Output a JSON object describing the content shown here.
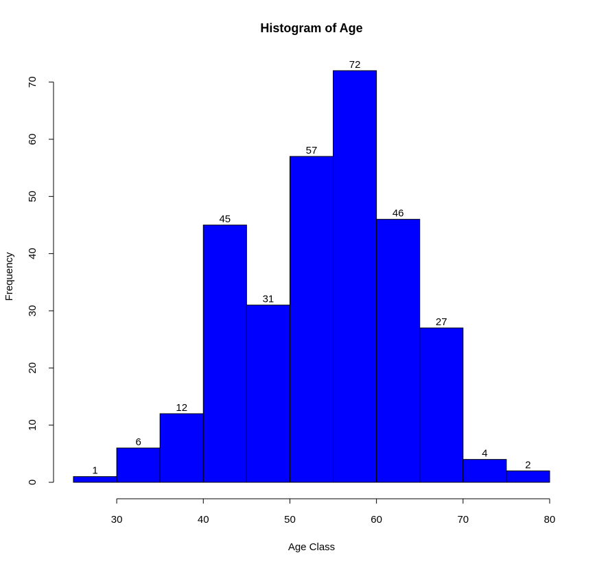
{
  "chart_data": {
    "type": "bar",
    "title": "Histogram of Age",
    "xlabel": "Age Class",
    "ylabel": "Frequency",
    "bins": [
      {
        "from": 25,
        "to": 30,
        "value": 1
      },
      {
        "from": 30,
        "to": 35,
        "value": 6
      },
      {
        "from": 35,
        "to": 40,
        "value": 12
      },
      {
        "from": 40,
        "to": 45,
        "value": 45
      },
      {
        "from": 45,
        "to": 50,
        "value": 31
      },
      {
        "from": 50,
        "to": 55,
        "value": 57
      },
      {
        "from": 55,
        "to": 60,
        "value": 72
      },
      {
        "from": 60,
        "to": 65,
        "value": 46
      },
      {
        "from": 65,
        "to": 70,
        "value": 27
      },
      {
        "from": 70,
        "to": 75,
        "value": 4
      },
      {
        "from": 75,
        "to": 80,
        "value": 2
      }
    ],
    "xticks": [
      30,
      40,
      50,
      60,
      70,
      80
    ],
    "yticks": [
      0,
      10,
      20,
      30,
      40,
      50,
      60,
      70
    ],
    "xlim": [
      25,
      80
    ],
    "ylim": [
      0,
      72
    ],
    "bar_color": "#0000ff",
    "grid": false,
    "legend": "none"
  }
}
